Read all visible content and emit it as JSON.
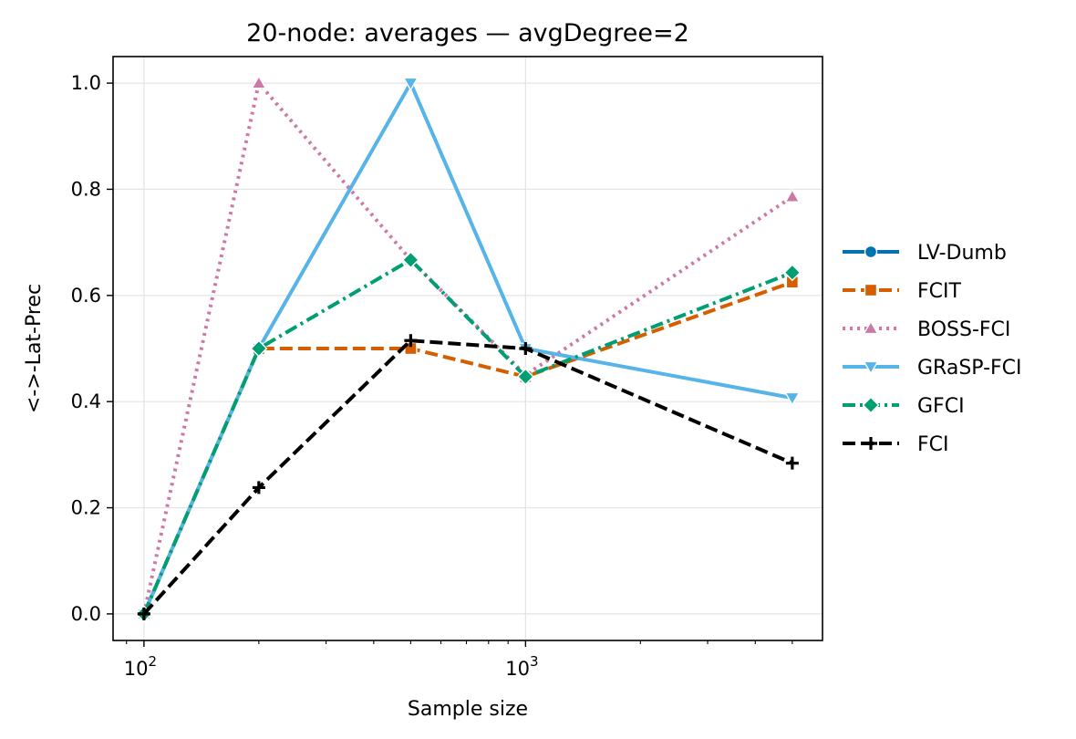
{
  "chart_data": {
    "type": "line",
    "title": "20-node: averages — avgDegree=2",
    "xlabel": "Sample size",
    "ylabel": "<->-Lat-Prec",
    "x_scale": "log",
    "xlim": [
      83,
      6000
    ],
    "ylim": [
      -0.05,
      1.05
    ],
    "x_ticks": [
      {
        "value": 100,
        "base": "10",
        "exp": "2"
      },
      {
        "value": 1000,
        "base": "10",
        "exp": "3"
      }
    ],
    "y_ticks": [
      {
        "value": 0.0,
        "label": "0.0"
      },
      {
        "value": 0.2,
        "label": "0.2"
      },
      {
        "value": 0.4,
        "label": "0.4"
      },
      {
        "value": 0.6,
        "label": "0.6"
      },
      {
        "value": 0.8,
        "label": "0.8"
      },
      {
        "value": 1.0,
        "label": "1.0"
      }
    ],
    "grid": true,
    "legend_position": "right-outside",
    "x": [
      100,
      200,
      500,
      1000,
      5000
    ],
    "series": [
      {
        "name": "LV-Dumb",
        "values": [
          null,
          null,
          null,
          null,
          null
        ],
        "color": "#0072b2",
        "dash": "",
        "marker": "circle"
      },
      {
        "name": "FCIT",
        "values": [
          0.0,
          0.5,
          0.5,
          0.447,
          0.625
        ],
        "color": "#d55e00",
        "dash": "dashed",
        "marker": "square"
      },
      {
        "name": "BOSS-FCI",
        "values": [
          0.0,
          1.0,
          0.667,
          0.45,
          0.786
        ],
        "color": "#cc79a7",
        "dash": "dotted",
        "marker": "triangle-up"
      },
      {
        "name": "GRaSP-FCI",
        "values": [
          0.0,
          0.5,
          1.0,
          0.5,
          0.407
        ],
        "color": "#56b4e9",
        "dash": "",
        "marker": "triangle-down"
      },
      {
        "name": "GFCI",
        "values": [
          0.0,
          0.5,
          0.667,
          0.447,
          0.643
        ],
        "color": "#009e73",
        "dash": "dashdot",
        "marker": "diamond"
      },
      {
        "name": "FCI",
        "values": [
          0.0,
          0.238,
          0.515,
          0.5,
          0.284
        ],
        "color": "#000000",
        "dash": "dashed",
        "marker": "plus"
      }
    ]
  }
}
